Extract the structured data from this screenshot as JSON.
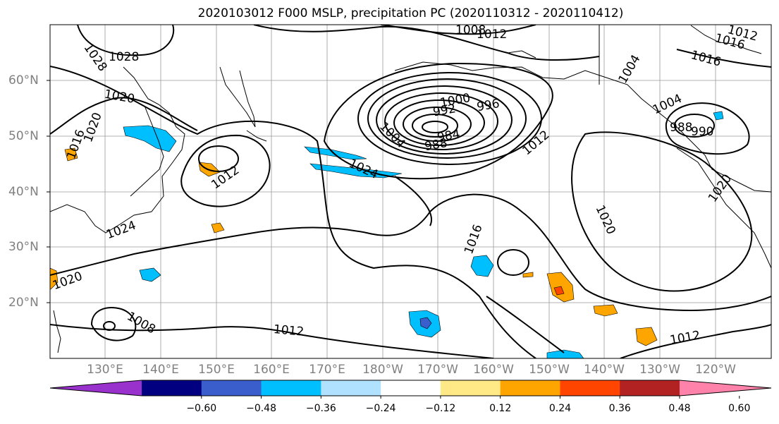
{
  "title": "2020103012 F000 MSLP, precipitation PC (2020110312 - 2020110412)",
  "lat_labels": [
    "60°N",
    "50°N",
    "40°N",
    "30°N",
    "20°N"
  ],
  "lon_labels": [
    "130°E",
    "140°E",
    "150°E",
    "160°E",
    "170°E",
    "180°W",
    "170°W",
    "160°W",
    "150°W",
    "140°W",
    "130°W",
    "120°W"
  ],
  "contour_labels": [
    "1028",
    "1028",
    "1008",
    "1012",
    "1012",
    "1016",
    "1016",
    "1020",
    "1020",
    "1016",
    "1012",
    "1024",
    "1000",
    "992",
    "996",
    "988",
    "984",
    "1004",
    "1012",
    "1004",
    "1004",
    "988",
    "990",
    "1020",
    "1020",
    "1016",
    "1024",
    "1020",
    "1008",
    "1012",
    "1012"
  ],
  "colorbar": {
    "ticks": [
      "−0.60",
      "−0.48",
      "−0.36",
      "−0.24",
      "−0.12",
      "0.12",
      "0.24",
      "0.36",
      "0.48",
      "0.60"
    ],
    "colors": [
      "#9932cc",
      "#000080",
      "#3a5fcd",
      "#00bfff",
      "#b0e2ff",
      "#ffffff",
      "#ffe987",
      "#ffa500",
      "#ff4500",
      "#b22222",
      "#ff82ab"
    ]
  }
}
